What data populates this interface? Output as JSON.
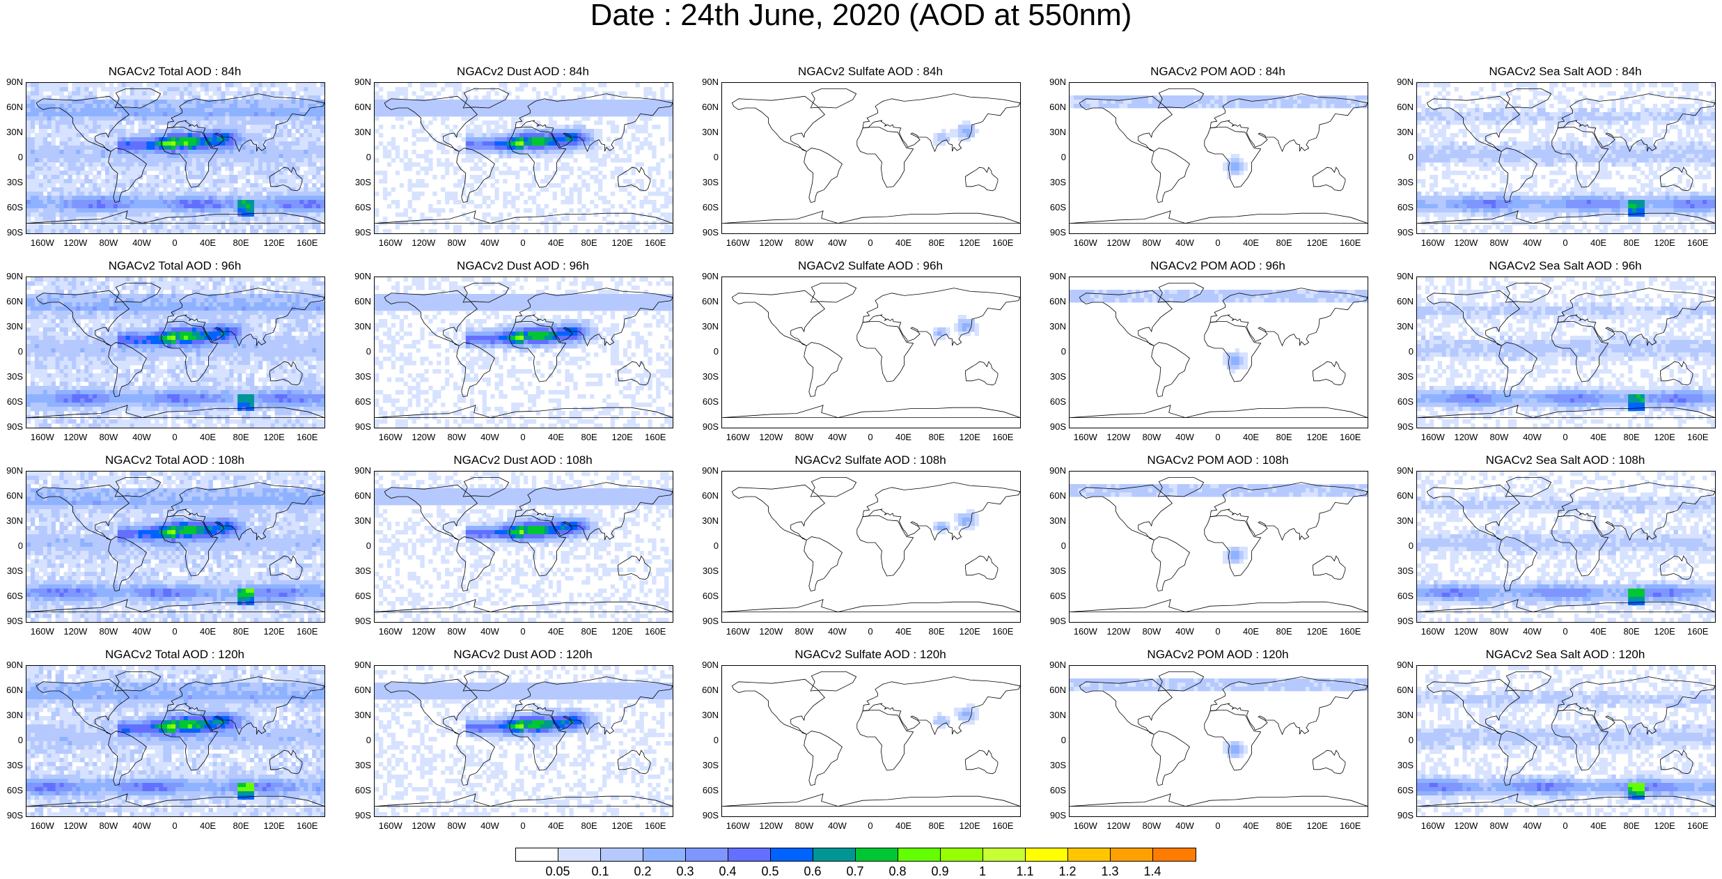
{
  "title": "Date : 24th June, 2020 (AOD at 550nm)",
  "lat_labels": [
    "90N",
    "60N",
    "30N",
    "0",
    "30S",
    "60S",
    "90S"
  ],
  "lon_labels": [
    "160W",
    "120W",
    "80W",
    "40W",
    "0",
    "40E",
    "80E",
    "120E",
    "160E"
  ],
  "panels": [
    {
      "title": "NGACv2 Total AOD : 84h",
      "type": "total"
    },
    {
      "title": "NGACv2 Dust AOD : 84h",
      "type": "dust"
    },
    {
      "title": "NGACv2 Sulfate AOD : 84h",
      "type": "sulfate"
    },
    {
      "title": "NGACv2 POM AOD : 84h",
      "type": "pom"
    },
    {
      "title": "NGACv2 Sea Salt AOD : 84h",
      "type": "seasalt"
    },
    {
      "title": "NGACv2 Total AOD : 96h",
      "type": "total"
    },
    {
      "title": "NGACv2 Dust AOD : 96h",
      "type": "dust"
    },
    {
      "title": "NGACv2 Sulfate AOD : 96h",
      "type": "sulfate"
    },
    {
      "title": "NGACv2 POM AOD : 96h",
      "type": "pom"
    },
    {
      "title": "NGACv2 Sea Salt AOD : 96h",
      "type": "seasalt"
    },
    {
      "title": "NGACv2 Total AOD : 108h",
      "type": "total"
    },
    {
      "title": "NGACv2 Dust AOD : 108h",
      "type": "dust"
    },
    {
      "title": "NGACv2 Sulfate AOD : 108h",
      "type": "sulfate"
    },
    {
      "title": "NGACv2 POM AOD : 108h",
      "type": "pom"
    },
    {
      "title": "NGACv2 Sea Salt AOD : 108h",
      "type": "seasalt"
    },
    {
      "title": "NGACv2 Total AOD : 120h",
      "type": "total"
    },
    {
      "title": "NGACv2 Dust AOD : 120h",
      "type": "dust"
    },
    {
      "title": "NGACv2 Sulfate AOD : 120h",
      "type": "sulfate"
    },
    {
      "title": "NGACv2 POM AOD : 120h",
      "type": "pom"
    },
    {
      "title": "NGACv2 Sea Salt  AOD : 120h",
      "type": "seasalt"
    }
  ],
  "colorbar": {
    "labels": [
      "0.05",
      "0.1",
      "0.2",
      "0.3",
      "0.4",
      "0.5",
      "0.6",
      "0.7",
      "0.8",
      "0.9",
      "1",
      "1.1",
      "1.2",
      "1.3",
      "1.4"
    ],
    "colors": [
      "#ffffff",
      "#d6e2ff",
      "#b5c9ff",
      "#8eb2ff",
      "#7f96ff",
      "#6370ff",
      "#0063ff",
      "#009696",
      "#00c633",
      "#63ff00",
      "#96ff00",
      "#c6ff33",
      "#ffff00",
      "#ffc600",
      "#ffa000",
      "#ff7c00",
      "#ff1900"
    ]
  }
}
